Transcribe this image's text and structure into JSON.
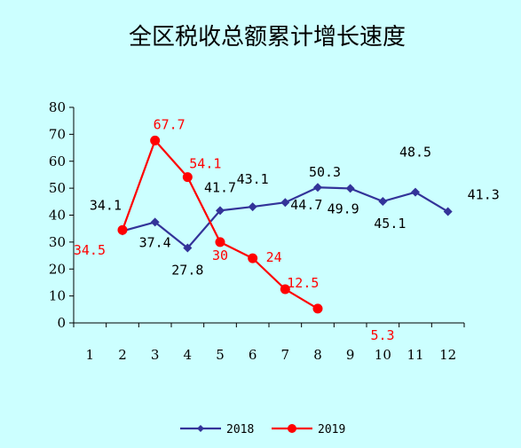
{
  "chart_data": {
    "type": "line",
    "title": "全区税收总额累计增长速度",
    "xlabel": "",
    "ylabel": "",
    "categories": [
      "1",
      "2",
      "3",
      "4",
      "5",
      "6",
      "7",
      "8",
      "9",
      "10",
      "11",
      "12"
    ],
    "ylim": [
      0,
      80
    ],
    "yticks": [
      "0",
      "10",
      "20",
      "30",
      "40",
      "50",
      "60",
      "70",
      "80"
    ],
    "grid": false,
    "legend_position": "bottom",
    "series": [
      {
        "name": "2018",
        "color": "#333399",
        "marker": "diamond",
        "x": [
          2,
          3,
          4,
          5,
          6,
          7,
          8,
          9,
          10,
          11,
          12
        ],
        "values": [
          34.1,
          37.4,
          27.8,
          41.7,
          43.1,
          44.7,
          50.3,
          49.9,
          45.1,
          48.5,
          41.3
        ],
        "labels": [
          "34.1",
          "37.4",
          "27.8",
          "41.7",
          "43.1",
          "44.7",
          "50.3",
          "49.9",
          "45.1",
          "48.5",
          "41.3"
        ]
      },
      {
        "name": "2019",
        "color": "#ff0000",
        "marker": "circle",
        "x": [
          2,
          3,
          4,
          5,
          6,
          7,
          8
        ],
        "values": [
          34.5,
          67.7,
          54.1,
          30,
          24,
          12.5,
          5.3
        ],
        "labels": [
          "34.5",
          "67.7",
          "54.1",
          "30",
          "24",
          "12.5",
          "5.3"
        ]
      }
    ]
  }
}
